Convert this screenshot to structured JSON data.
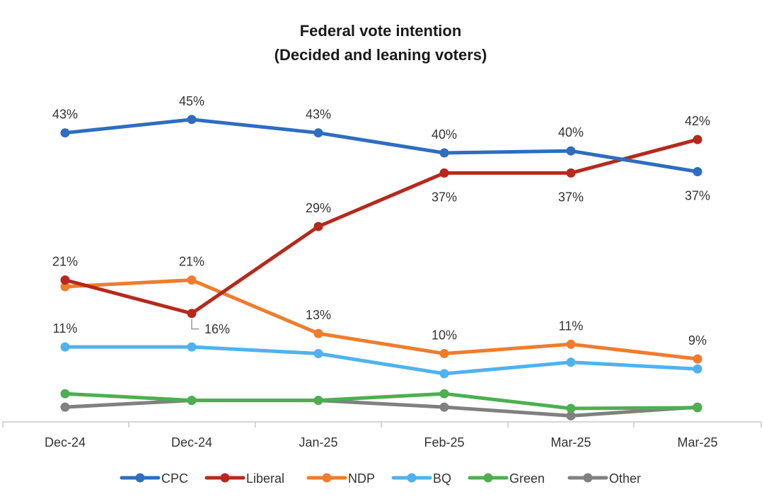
{
  "chart_data": {
    "type": "line",
    "title_line1": "Federal vote intention",
    "title_line2": "(Decided and leaning voters)",
    "categories": [
      "Dec-24",
      "Dec-24",
      "Jan-25",
      "Feb-25",
      "Mar-25",
      "Mar-25"
    ],
    "ylim": [
      0,
      50
    ],
    "grid": false,
    "legend_position": "bottom",
    "series": [
      {
        "name": "CPC",
        "color": "#2E6DC0",
        "values": [
          43,
          45,
          43,
          40,
          40.3,
          37.2
        ],
        "labels": [
          "43%",
          "45%",
          "43%",
          "40%",
          "40%",
          "37%"
        ]
      },
      {
        "name": "Liberal",
        "color": "#B52A1C",
        "values": [
          21,
          16,
          29,
          37,
          37,
          42
        ],
        "labels": [
          "21%",
          "16%",
          "29%",
          "37%",
          "37%",
          "42%"
        ]
      },
      {
        "name": "NDP",
        "color": "#F07C2E",
        "values": [
          20,
          21,
          13,
          10,
          11.4,
          9.2
        ],
        "labels": [
          "",
          "21%",
          "13%",
          "10%",
          "11%",
          "9%"
        ]
      },
      {
        "name": "BQ",
        "color": "#4FB2EE",
        "values": [
          11,
          11,
          10,
          7,
          8.7,
          7.7
        ],
        "labels": [
          "11%",
          "",
          "",
          "",
          "",
          ""
        ]
      },
      {
        "name": "Green",
        "color": "#4CAF50",
        "values": [
          4,
          3,
          3,
          4,
          1.8,
          1.9
        ],
        "labels": [
          "",
          "",
          "",
          "",
          "",
          ""
        ]
      },
      {
        "name": "Other",
        "color": "#808080",
        "values": [
          2,
          3,
          3,
          2,
          0.7,
          2
        ],
        "labels": [
          "",
          "",
          "",
          "",
          "",
          ""
        ]
      }
    ]
  }
}
